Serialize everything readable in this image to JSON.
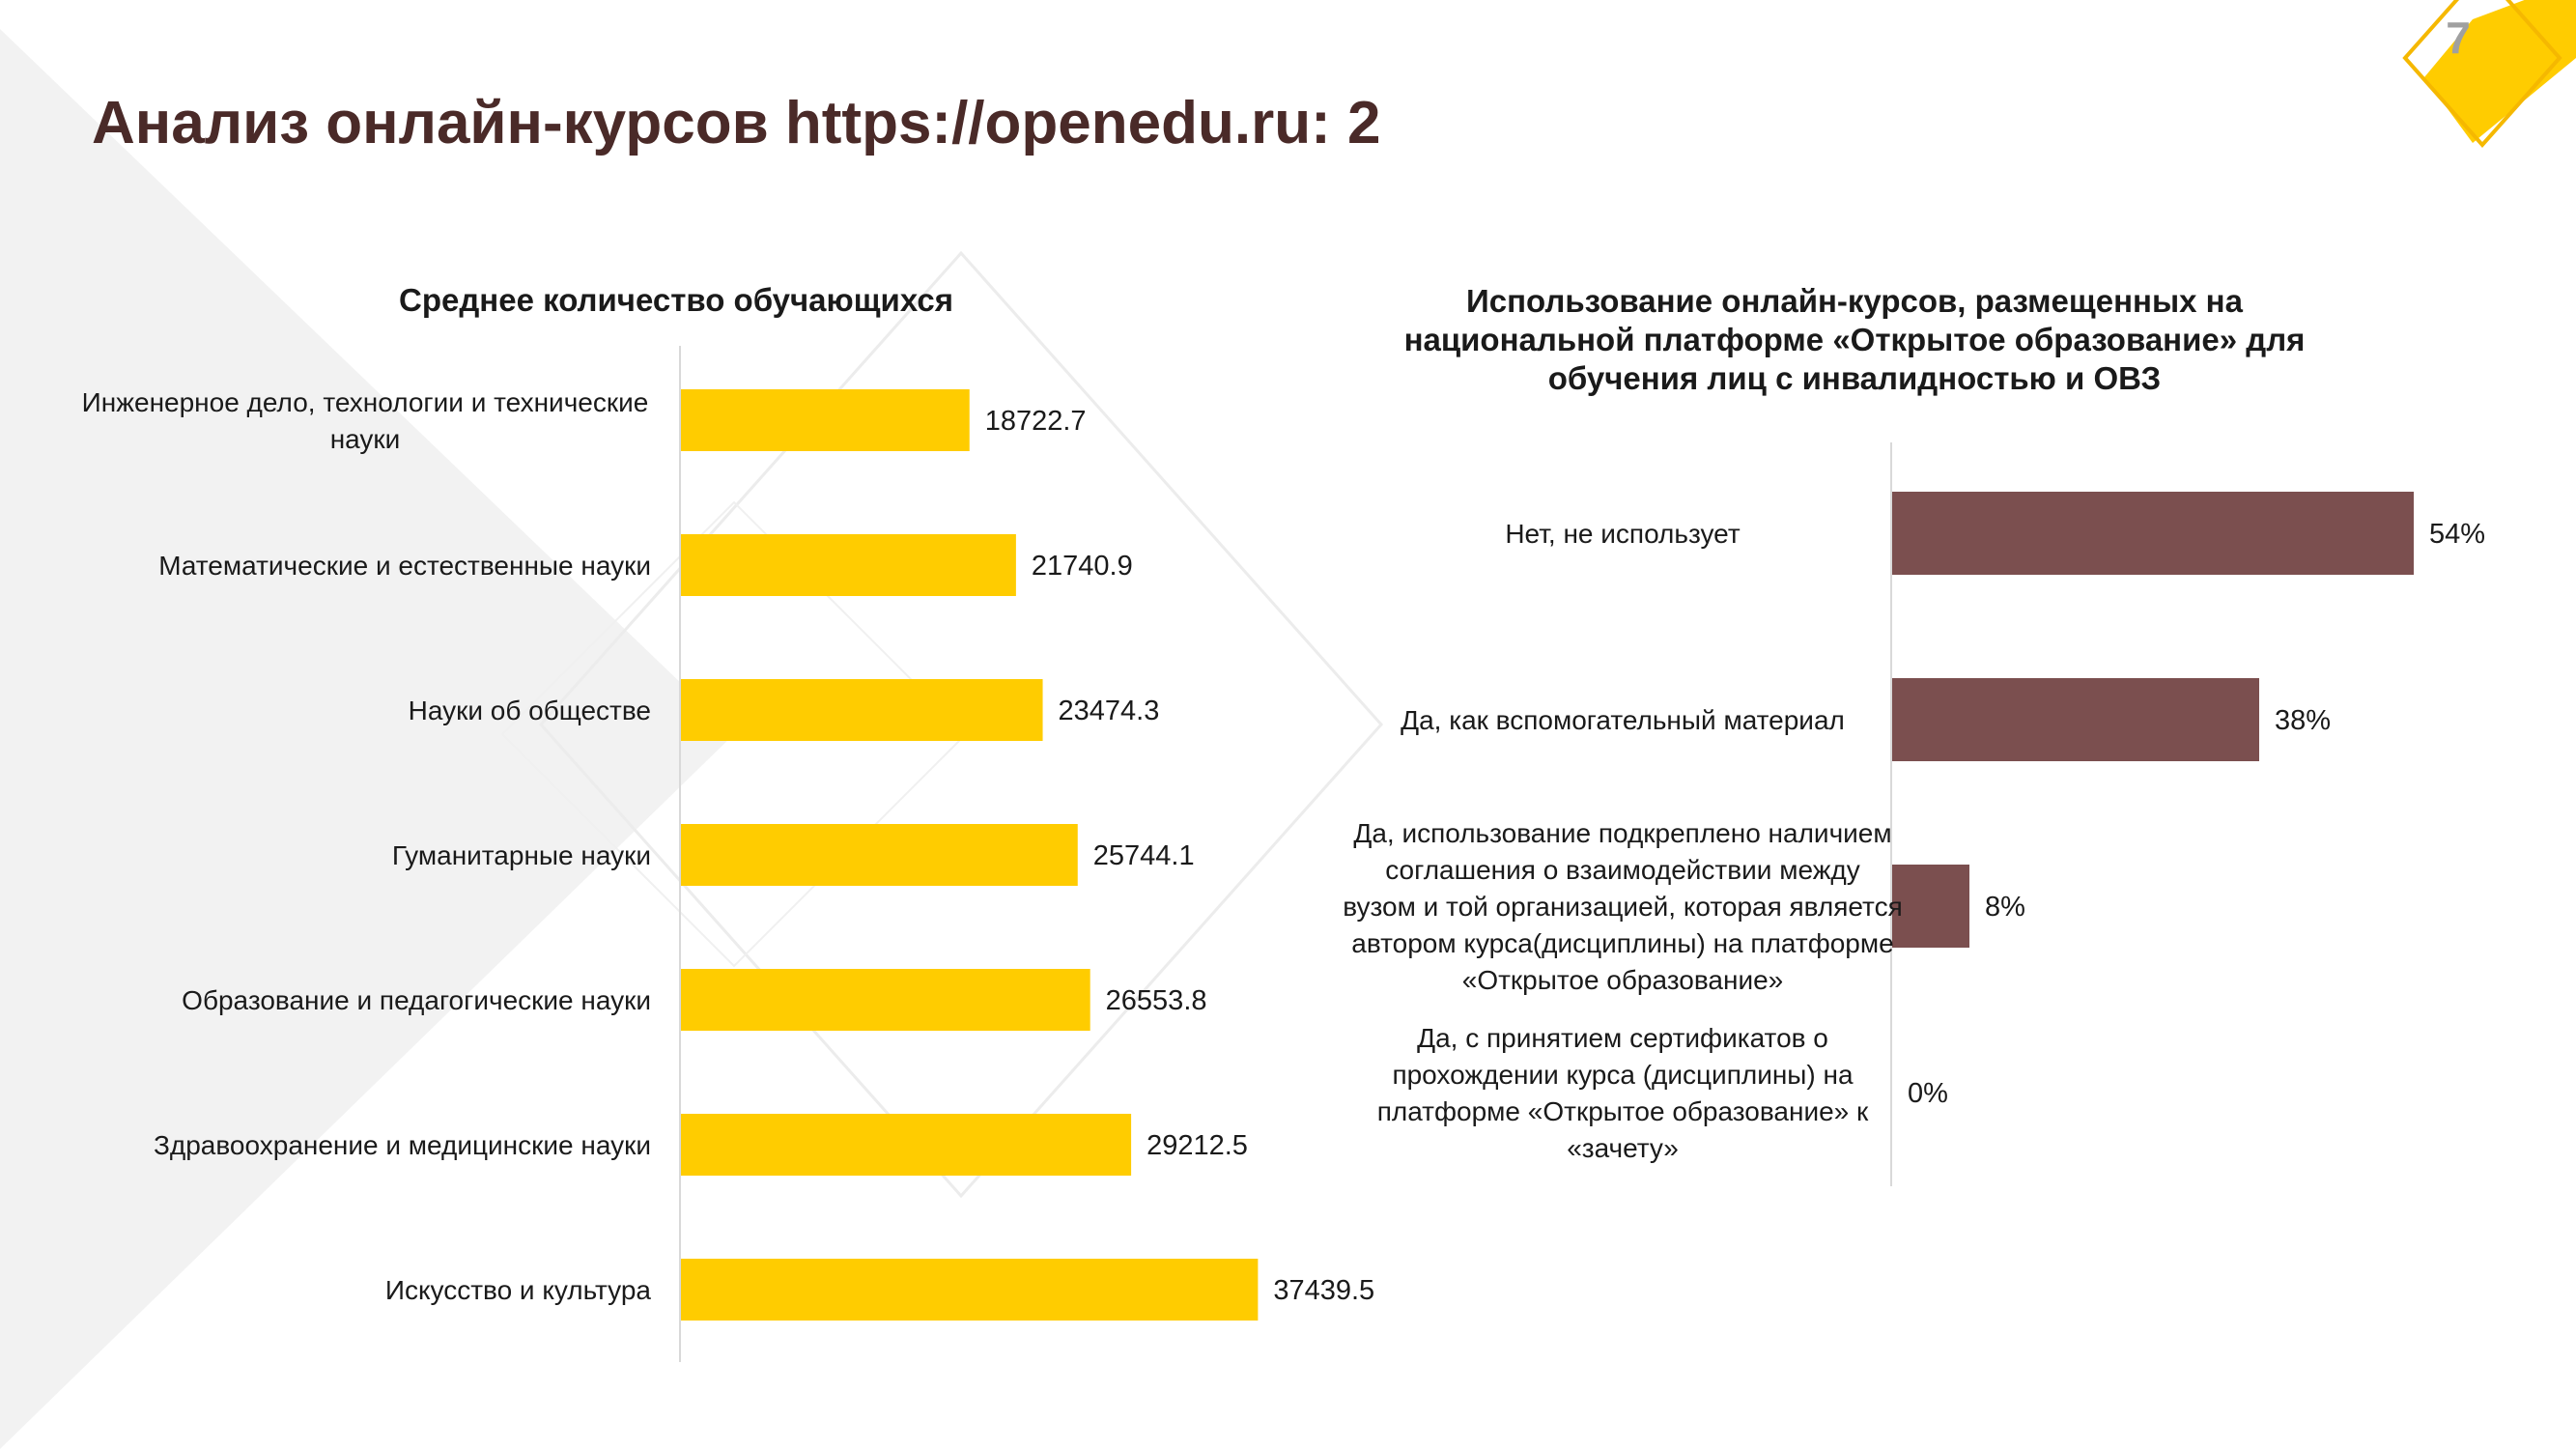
{
  "slide": {
    "title": "Анализ онлайн-курсов https://openedu.ru: 2",
    "page_number": "7",
    "colors": {
      "title": "#4a2a28",
      "accent_yellow": "#FFCC00",
      "bar_brown": "#7B4F4F",
      "decor_gray": "#f2f2f2"
    }
  },
  "chart_data": [
    {
      "type": "bar",
      "orientation": "horizontal",
      "title": "Среднее количество обучающихся",
      "categories": [
        "Инженерное дело, технологии и технические науки",
        "Математические и естественные науки",
        "Науки об обществе",
        "Гуманитарные науки",
        "Образование и педагогические науки",
        "Здравоохранение и медицинские науки",
        "Искусство и культура"
      ],
      "values": [
        18722.7,
        21740.9,
        23474.3,
        25744.1,
        26553.8,
        29212.5,
        37439.5
      ],
      "value_labels": [
        "18722.7",
        "21740.9",
        "23474.3",
        "25744.1",
        "26553.8",
        "29212.5",
        "37439.5"
      ],
      "xlim": [
        0,
        45000
      ],
      "color": "#FFCC00",
      "grid": false
    },
    {
      "type": "bar",
      "orientation": "horizontal",
      "title": "Использование онлайн-курсов, размещенных на национальной платформе «Открытое образование» для обучения лиц с инвалидностью и ОВЗ",
      "categories": [
        "Нет, не использует",
        "Да, как вспомогательный материал",
        "Да, использование подкреплено наличием соглашения о взаимодействии между вузом и той организацией, которая является автором курса(дисциплины) на платформе «Открытое образование»",
        "Да, с принятием сертификатов о прохождении курса (дисциплины) на платформе «Открытое образование» к «зачету»"
      ],
      "values": [
        54,
        38,
        8,
        0
      ],
      "value_labels": [
        "54%",
        "38%",
        "8%",
        "0%"
      ],
      "xlim": [
        0,
        100
      ],
      "color": "#7B4F4F",
      "grid": false
    }
  ]
}
